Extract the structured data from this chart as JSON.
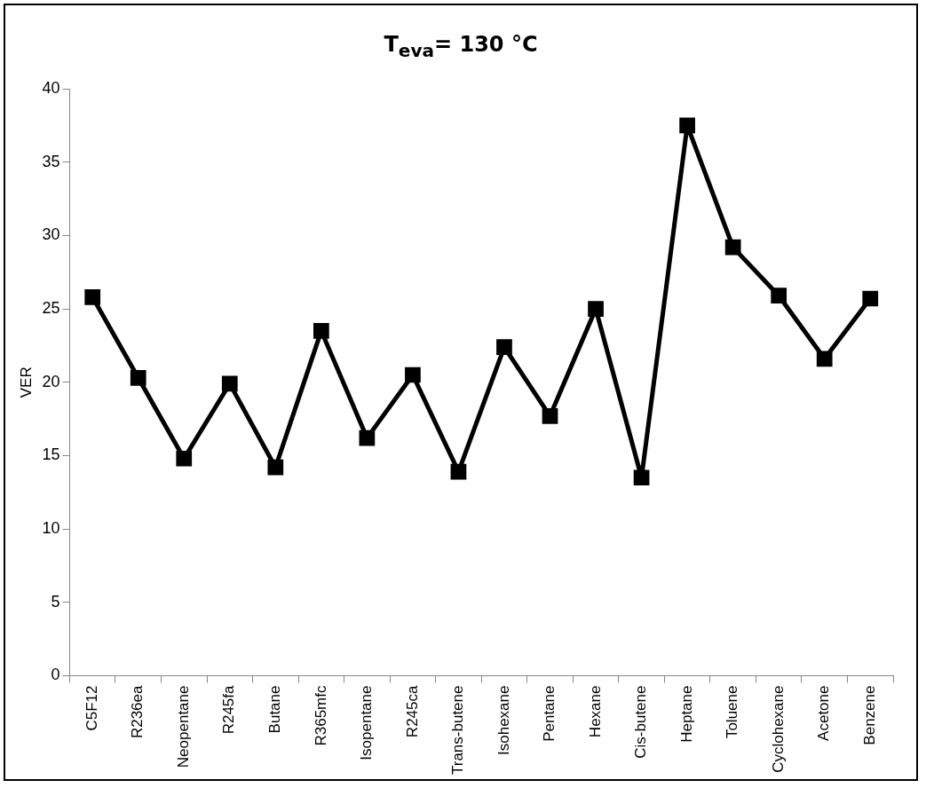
{
  "chart_data": {
    "type": "line",
    "title": "T$_{eva}$= 130 °C",
    "ylabel": "VER",
    "categories": [
      "C5F12",
      "R236ea",
      "Neopentane",
      "R245fa",
      "Butane",
      "R365mfc",
      "Isopentane",
      "R245ca",
      "Trans-butene",
      "Isohexane",
      "Pentane",
      "Hexane",
      "Cis-butene",
      "Heptane",
      "Toluene",
      "Cyclohexane",
      "Acetone",
      "Benzene"
    ],
    "series": [
      {
        "color": "#000000",
        "values": [
          25.8,
          20.3,
          14.8,
          19.9,
          14.2,
          23.5,
          16.2,
          20.5,
          13.9,
          22.4,
          17.7,
          25.0,
          13.5,
          37.5,
          29.2,
          25.9,
          21.6,
          25.7
        ]
      }
    ],
    "ylim": [
      0,
      40
    ],
    "yticks": [
      0,
      5,
      10,
      15,
      20,
      25,
      30,
      35,
      40
    ],
    "grid": false,
    "legend": false,
    "marker": "square",
    "line_style": "solid"
  }
}
